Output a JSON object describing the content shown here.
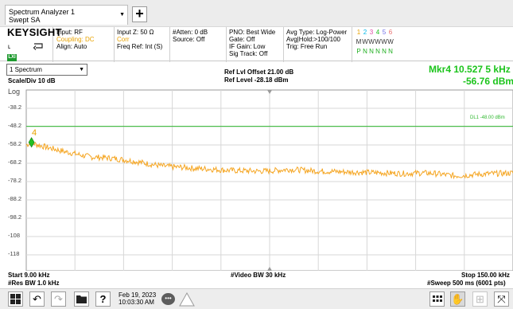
{
  "screen_tab": {
    "line1": "Spectrum Analyzer 1",
    "line2": "Swept SA"
  },
  "add_screen_label": "+",
  "brand": "KEYSIGHT",
  "input_panel": {
    "input": "Input: RF",
    "coupling": "Coupling: DC",
    "align": "Align: Auto"
  },
  "input_z_panel": {
    "input_z": "Input Z: 50 Ω",
    "corr": "Corr",
    "freq_ref": "Freq Ref: Int (S)"
  },
  "atten_panel": {
    "atten": "#Atten: 0 dB",
    "source": "Source: Off"
  },
  "pno_panel": {
    "pno": "PNO: Best Wide",
    "gate": "Gate: Off",
    "if_gain": "IF Gain: Low",
    "sig_track": "Sig Track: Off"
  },
  "avg_panel": {
    "avg_type": "Avg Type: Log-Power",
    "avg_hold": "Avg|Hold:>100/100",
    "trig": "Trig: Free Run"
  },
  "trace_panel": {
    "numbers": [
      "1",
      "2",
      "3",
      "4",
      "5",
      "6"
    ],
    "types": [
      "M",
      "W",
      "W",
      "W",
      "W",
      "W"
    ],
    "detectors": [
      "P",
      "N",
      "N",
      "N",
      "N",
      "N"
    ],
    "number_colors": [
      "#e8a200",
      "#00b7e8",
      "#e04aa6",
      "#1cbf1c",
      "#6f6fe8",
      "#e86f6f"
    ]
  },
  "lxi_badge": "LXI",
  "window_select": "1 Spectrum",
  "scale_div": "Scale/Div 10 dB",
  "scale_type": "Log",
  "ref_offset": "Ref Lvl Offset 21.00 dB",
  "ref_level": "Ref Level -28.18 dBm",
  "marker": {
    "freq": "Mkr4  10.527 5 kHz",
    "ampl": "-56.76 dBm",
    "label": "4"
  },
  "y_labels": [
    "-38.2",
    "-48.2",
    "-58.2",
    "-68.2",
    "-78.2",
    "-88.2",
    "-98.2",
    "-108",
    "-118"
  ],
  "display_line_label": "DL1 -48.00 dBm",
  "footer": {
    "start": "Start 9.00 kHz",
    "res_bw": "#Res BW 1.0 kHz",
    "video_bw": "#Video BW 30 kHz",
    "stop": "Stop 150.00 kHz",
    "sweep": "#Sweep 500 ms (6001 pts)"
  },
  "taskbar": {
    "date": "Feb 19, 2023",
    "time": "10:03:30 AM"
  },
  "colors": {
    "trace": "#f5a623",
    "display_line": "#2fb82f",
    "marker_text": "#1cc41c"
  },
  "chart_data": {
    "type": "line",
    "x_unit": "kHz",
    "y_unit": "dBm",
    "xlim": [
      9.0,
      150.0
    ],
    "ylim": [
      -128.18,
      -28.18
    ],
    "display_line": -48.0,
    "series": [
      {
        "x": [
          9.0,
          10.5,
          12,
          15,
          18,
          20,
          22,
          25,
          28,
          31,
          34,
          37,
          40,
          43,
          46,
          49,
          52,
          55,
          58,
          61,
          64,
          67,
          70,
          73,
          76,
          79,
          82,
          85,
          88,
          91,
          94,
          97,
          100,
          103,
          106,
          109,
          112,
          115,
          118,
          121,
          124,
          127,
          130,
          133,
          136,
          139,
          142,
          145,
          148,
          150
        ],
        "y": [
          -58.2,
          -56.8,
          -58.0,
          -59.5,
          -60.8,
          -61.8,
          -62.5,
          -63.8,
          -64.8,
          -65.0,
          -65.5,
          -66.2,
          -67.0,
          -68.0,
          -69.0,
          -69.8,
          -70.2,
          -70.5,
          -71.0,
          -71.2,
          -71.6,
          -72.0,
          -72.2,
          -72.3,
          -72.5,
          -72.4,
          -72.0,
          -71.5,
          -71.8,
          -72.2,
          -72.5,
          -72.6,
          -72.8,
          -73.0,
          -73.1,
          -73.3,
          -73.4,
          -73.6,
          -73.8,
          -73.6,
          -73.5,
          -73.7,
          -74.4,
          -75.0,
          -74.8,
          -74.3,
          -74.0,
          -73.8,
          -73.6,
          -73.5
        ]
      }
    ]
  }
}
